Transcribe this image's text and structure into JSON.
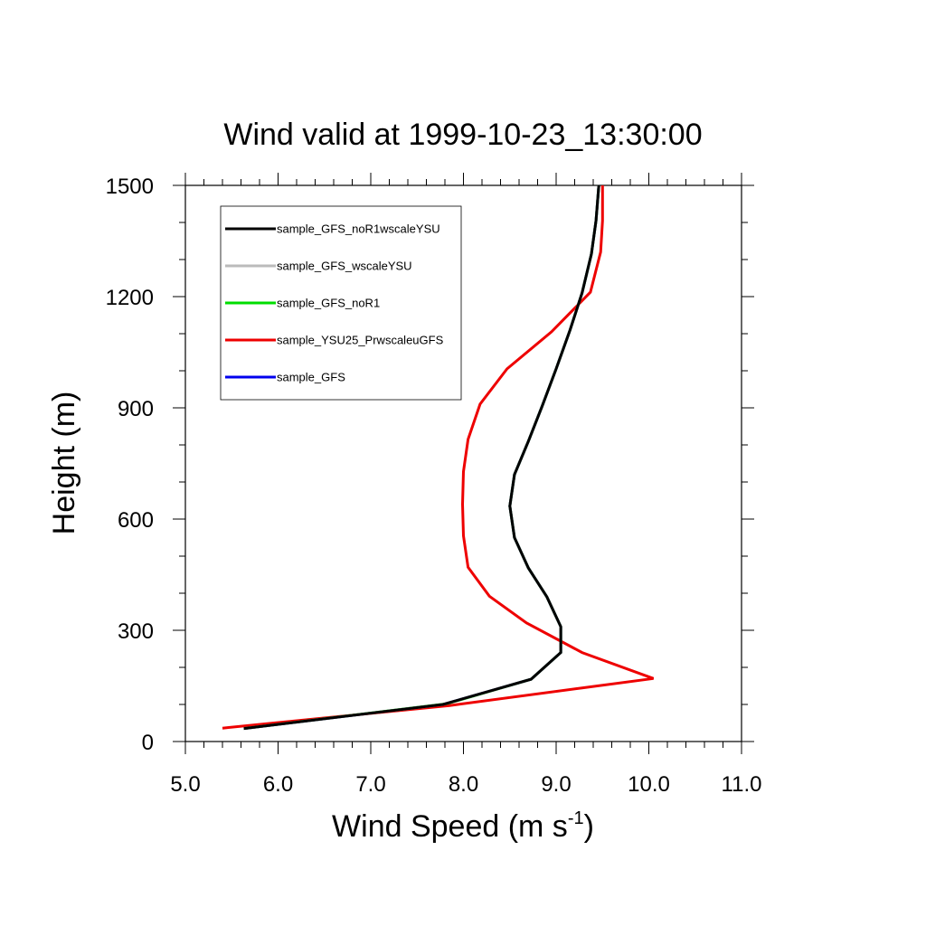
{
  "chart_data": {
    "type": "line",
    "title": "Wind valid at 1999-10-23_13:30:00",
    "xlabel": "Wind Speed (m s",
    "xlabel_superscript": "-1",
    "xlabel_suffix": ")",
    "ylabel": "Height (m)",
    "xlim": [
      5.0,
      11.0
    ],
    "ylim": [
      0,
      1500
    ],
    "x_ticks": [
      5.0,
      6.0,
      7.0,
      8.0,
      9.0,
      10.0,
      11.0
    ],
    "x_tick_labels": [
      "5.0",
      "6.0",
      "7.0",
      "8.0",
      "9.0",
      "10.0",
      "11.0"
    ],
    "y_ticks": [
      0,
      300,
      600,
      900,
      1200,
      1500
    ],
    "y_tick_labels": [
      "0",
      "300",
      "600",
      "900",
      "1200",
      "1500"
    ],
    "grid": false,
    "legend_position": "top-left",
    "series": [
      {
        "name": "sample_GFS_noR1wscaleYSU",
        "color": "#000000",
        "points": [
          [
            5.63,
            35
          ],
          [
            7.78,
            100
          ],
          [
            8.73,
            168
          ],
          [
            9.05,
            240
          ],
          [
            9.05,
            310
          ],
          [
            8.9,
            390
          ],
          [
            8.7,
            468
          ],
          [
            8.55,
            550
          ],
          [
            8.5,
            635
          ],
          [
            8.55,
            720
          ],
          [
            8.7,
            810
          ],
          [
            8.85,
            905
          ],
          [
            9.0,
            1005
          ],
          [
            9.15,
            1110
          ],
          [
            9.28,
            1210
          ],
          [
            9.38,
            1315
          ],
          [
            9.43,
            1405
          ],
          [
            9.46,
            1500
          ]
        ]
      },
      {
        "name": "sample_GFS_wscaleYSU",
        "color": "#bbbbbb",
        "points": [
          [
            5.63,
            35
          ],
          [
            7.78,
            100
          ],
          [
            8.73,
            168
          ],
          [
            9.05,
            240
          ],
          [
            9.05,
            310
          ],
          [
            8.9,
            390
          ],
          [
            8.7,
            468
          ],
          [
            8.55,
            550
          ],
          [
            8.5,
            635
          ],
          [
            8.55,
            720
          ],
          [
            8.7,
            810
          ],
          [
            8.85,
            905
          ],
          [
            9.0,
            1005
          ],
          [
            9.15,
            1110
          ],
          [
            9.28,
            1210
          ],
          [
            9.38,
            1315
          ],
          [
            9.43,
            1405
          ],
          [
            9.46,
            1500
          ]
        ]
      },
      {
        "name": "sample_GFS_noR1",
        "color": "#00dd00",
        "points": [
          [
            5.63,
            35
          ],
          [
            7.82,
            102
          ],
          [
            8.73,
            168
          ],
          [
            9.05,
            240
          ],
          [
            9.05,
            310
          ],
          [
            8.9,
            390
          ],
          [
            8.7,
            468
          ],
          [
            8.55,
            550
          ],
          [
            8.5,
            635
          ],
          [
            8.55,
            720
          ],
          [
            8.7,
            810
          ],
          [
            8.85,
            905
          ],
          [
            9.0,
            1005
          ],
          [
            9.15,
            1110
          ],
          [
            9.28,
            1210
          ],
          [
            9.38,
            1315
          ],
          [
            9.43,
            1405
          ],
          [
            9.46,
            1500
          ]
        ]
      },
      {
        "name": "sample_YSU25_PrwscaleuGFS",
        "color": "#ee0000",
        "points": [
          [
            5.4,
            36
          ],
          [
            7.85,
            97
          ],
          [
            10.05,
            170
          ],
          [
            9.28,
            240
          ],
          [
            8.68,
            320
          ],
          [
            8.28,
            392
          ],
          [
            8.05,
            470
          ],
          [
            8.0,
            555
          ],
          [
            7.99,
            640
          ],
          [
            8.0,
            728
          ],
          [
            8.05,
            815
          ],
          [
            8.18,
            910
          ],
          [
            8.47,
            1005
          ],
          [
            8.95,
            1105
          ],
          [
            9.37,
            1212
          ],
          [
            9.48,
            1320
          ],
          [
            9.5,
            1405
          ],
          [
            9.5,
            1500
          ]
        ]
      },
      {
        "name": "sample_GFS",
        "color": "#0000ee",
        "points": [
          [
            5.63,
            35
          ],
          [
            7.78,
            100
          ],
          [
            8.73,
            168
          ],
          [
            9.05,
            240
          ],
          [
            9.05,
            310
          ],
          [
            8.9,
            390
          ],
          [
            8.7,
            468
          ],
          [
            8.55,
            550
          ],
          [
            8.5,
            635
          ],
          [
            8.55,
            720
          ],
          [
            8.7,
            810
          ],
          [
            8.85,
            905
          ],
          [
            9.0,
            1005
          ],
          [
            9.15,
            1110
          ],
          [
            9.28,
            1210
          ],
          [
            9.38,
            1315
          ],
          [
            9.43,
            1405
          ],
          [
            9.46,
            1500
          ]
        ]
      }
    ],
    "draw_order": [
      4,
      3,
      2,
      1,
      0
    ]
  }
}
